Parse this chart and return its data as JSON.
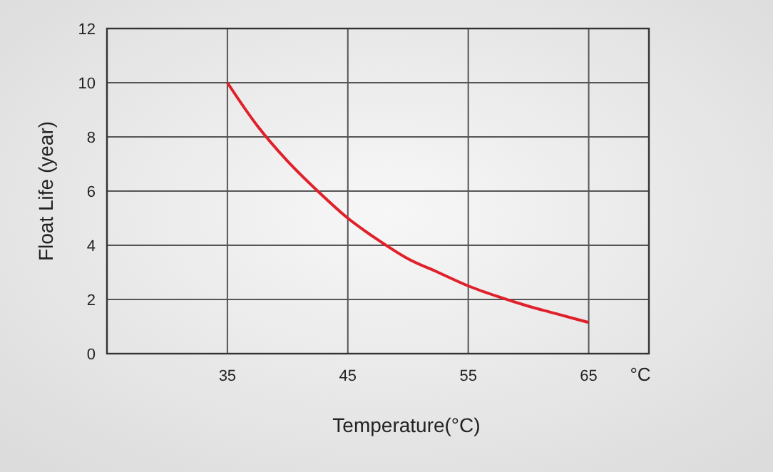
{
  "chart_data": {
    "type": "line",
    "xlabel": "Temperature(°C)",
    "ylabel": "Float Life (year)",
    "x": [
      35,
      37.5,
      40,
      42.5,
      45,
      47.5,
      50,
      52.5,
      55,
      57.5,
      60,
      62.5,
      65
    ],
    "series": [
      {
        "color": "#e0202a",
        "values": [
          10,
          8.4,
          7.1,
          6.0,
          5.0,
          4.2,
          3.5,
          3.0,
          2.5,
          2.1,
          1.75,
          1.45,
          1.15
        ]
      }
    ],
    "xlim": [
      25,
      70
    ],
    "xticks": [
      35,
      45,
      55,
      65
    ],
    "ylim": [
      0,
      12
    ],
    "yticks": [
      0,
      2,
      4,
      6,
      8,
      10,
      12
    ],
    "grid": true,
    "marker": "none",
    "line_style": "solid",
    "annotations": [
      "°C"
    ]
  }
}
